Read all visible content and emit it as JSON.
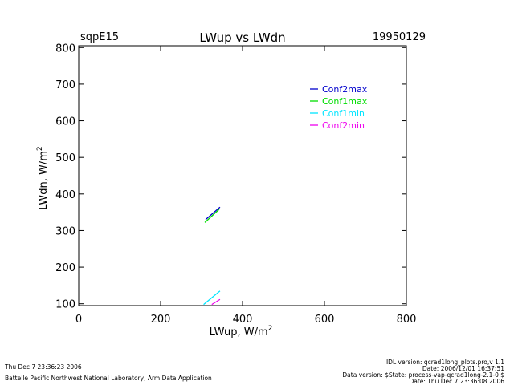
{
  "header": {
    "site": "sqpE15",
    "title": "LWup vs LWdn",
    "date": "19950129"
  },
  "footer": {
    "timestamp_left": "Thu Dec  7 23:36:23 2006",
    "organization": "Battelle Pacific Northwest National Laboratory, Arm Data Application",
    "idl_version": "IDL version: qcrad1long_plots.pro,v 1.1",
    "date_line": "Date: 2006/12/01 16:37:51",
    "data_version": "Data version: $State: process-vap-qcrad1long-2.1-0 $",
    "date_right": "Date: Thu Dec  7 23:36:08 2006"
  },
  "chart_data": {
    "type": "line",
    "title": "LWup vs LWdn",
    "xlabel_main": "LWup, W/m",
    "xlabel_sup": "2",
    "ylabel_main": "LWdn, W/m",
    "ylabel_sup": "2",
    "xlim": [
      0,
      800
    ],
    "ylim": [
      95,
      805
    ],
    "xticks": [
      0,
      200,
      400,
      600,
      800
    ],
    "yticks": [
      100,
      200,
      300,
      400,
      500,
      600,
      700,
      800
    ],
    "grid": false,
    "legend_position": "top-right",
    "series": [
      {
        "name": "Conf2max",
        "color": "#0000cc",
        "x": [
          310,
          345
        ],
        "y": [
          330,
          364
        ]
      },
      {
        "name": "Conf1max",
        "color": "#00dd00",
        "x": [
          308,
          343
        ],
        "y": [
          322,
          358
        ]
      },
      {
        "name": "Conf1min",
        "color": "#00e5ff",
        "x": [
          305,
          345
        ],
        "y": [
          98,
          135
        ]
      },
      {
        "name": "Conf2min",
        "color": "#ee00ee",
        "x": [
          325,
          345
        ],
        "y": [
          98,
          112
        ]
      }
    ]
  }
}
